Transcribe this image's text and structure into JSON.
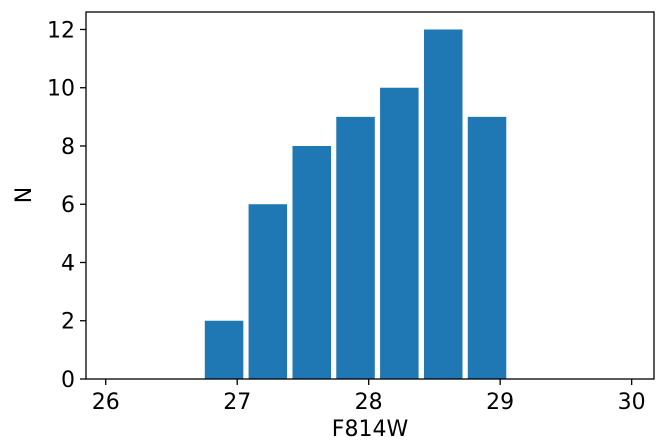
{
  "chart_data": {
    "type": "bar",
    "title": "",
    "xlabel": "F814W",
    "ylabel": "N",
    "x": [
      26.9,
      27.233,
      27.567,
      27.9,
      28.233,
      28.567,
      28.9
    ],
    "bin_width": 0.333,
    "values": [
      2,
      6,
      8,
      9,
      10,
      12,
      9
    ],
    "xlim": [
      25.85,
      30.17
    ],
    "ylim": [
      0,
      12.6
    ],
    "xticks": [
      26,
      27,
      28,
      29,
      30
    ],
    "yticks": [
      0,
      2,
      4,
      6,
      8,
      10,
      12
    ],
    "bar_color": "#1f77b4",
    "grid": false
  }
}
